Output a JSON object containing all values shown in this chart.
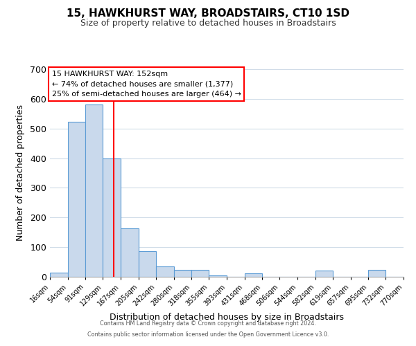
{
  "title": "15, HAWKHURST WAY, BROADSTAIRS, CT10 1SD",
  "subtitle": "Size of property relative to detached houses in Broadstairs",
  "xlabel": "Distribution of detached houses by size in Broadstairs",
  "ylabel": "Number of detached properties",
  "bar_edges": [
    16,
    54,
    91,
    129,
    167,
    205,
    242,
    280,
    318,
    355,
    393,
    431,
    468,
    506,
    544,
    582,
    619,
    657,
    695,
    732,
    770
  ],
  "bar_heights": [
    14,
    522,
    580,
    400,
    163,
    86,
    35,
    23,
    23,
    5,
    0,
    12,
    0,
    0,
    0,
    20,
    0,
    0,
    23,
    0,
    0
  ],
  "bar_color": "#c9d9ec",
  "bar_edge_color": "#5b9bd5",
  "vline_x": 152,
  "vline_color": "red",
  "ylim": [
    0,
    700
  ],
  "yticks": [
    0,
    100,
    200,
    300,
    400,
    500,
    600,
    700
  ],
  "annotation_title": "15 HAWKHURST WAY: 152sqm",
  "annotation_line1": "← 74% of detached houses are smaller (1,377)",
  "annotation_line2": "25% of semi-detached houses are larger (464) →",
  "annotation_box_color": "white",
  "annotation_box_edge_color": "red",
  "footer_line1": "Contains HM Land Registry data © Crown copyright and database right 2024.",
  "footer_line2": "Contains public sector information licensed under the Open Government Licence v3.0.",
  "background_color": "white",
  "grid_color": "#d0dce8",
  "tick_labels": [
    "16sqm",
    "54sqm",
    "91sqm",
    "129sqm",
    "167sqm",
    "205sqm",
    "242sqm",
    "280sqm",
    "318sqm",
    "355sqm",
    "393sqm",
    "431sqm",
    "468sqm",
    "506sqm",
    "544sqm",
    "582sqm",
    "619sqm",
    "657sqm",
    "695sqm",
    "732sqm",
    "770sqm"
  ]
}
